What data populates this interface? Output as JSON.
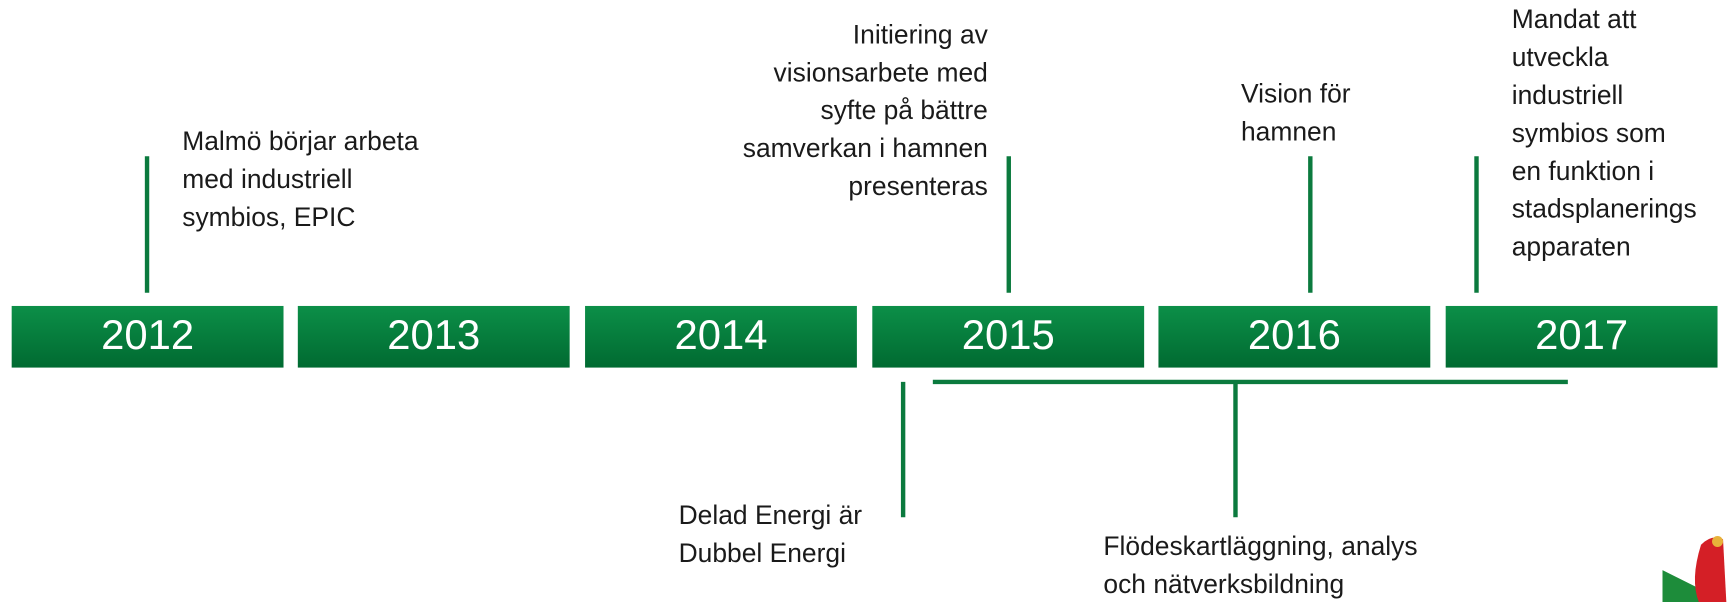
{
  "years": [
    "2012",
    "2013",
    "2014",
    "2015",
    "2016",
    "2017"
  ],
  "events": [
    {
      "lines": [
        "Malmö börjar arbeta",
        "med industriell",
        "symbios, EPIC"
      ]
    },
    {
      "lines": [
        "Initiering av",
        "visionsarbete med",
        "syfte på bättre",
        "samverkan i hamnen",
        "presenteras"
      ]
    },
    {
      "lines": [
        "Vision för",
        "hamnen"
      ]
    },
    {
      "lines": [
        "Mandat att",
        "utveckla",
        "industriell",
        "symbios som",
        "en funktion i",
        "stadsplanerings",
        "apparaten"
      ]
    },
    {
      "lines": [
        "Delad Energi är",
        "Dubbel Energi"
      ]
    },
    {
      "lines": [
        "Flödeskartläggning, analys",
        "och nätverksbildning"
      ]
    }
  ]
}
